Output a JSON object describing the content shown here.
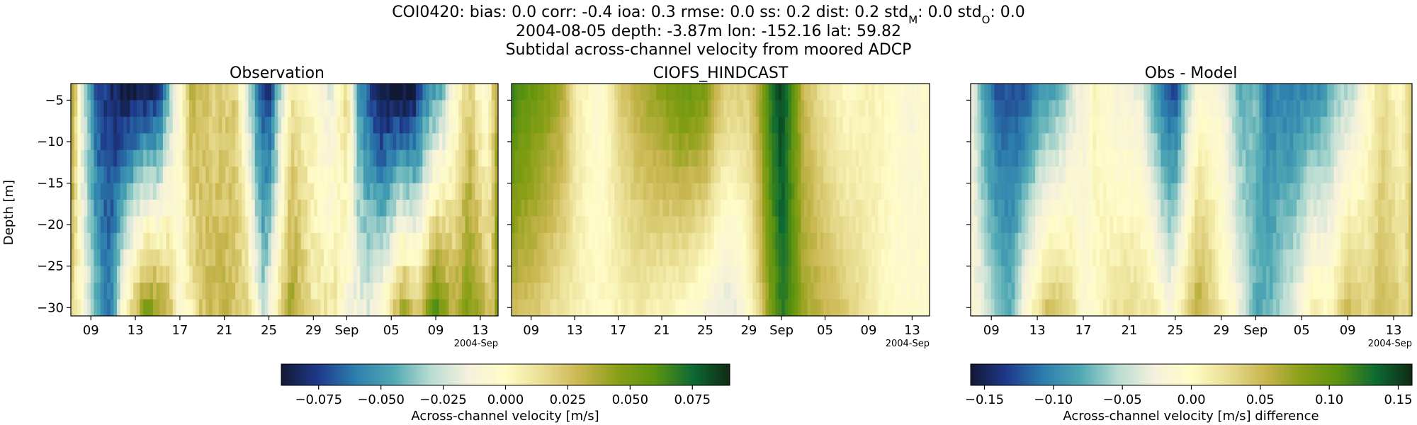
{
  "figure": {
    "title_line1_prefix": "COI0420: bias: 0.0  corr: -0.4  ioa: 0.3  rmse: 0.0  ss: 0.2  dist: 0.2  std",
    "title_line1_sub_m": "M",
    "title_line1_mid": ": 0.0  std",
    "title_line1_sub_o": "O",
    "title_line1_end": ": 0.0",
    "title_line2": "2004-08-05 depth: -3.87m lon: -152.16 lat: 59.82",
    "title_line3": "Subtidal across-channel velocity from moored ADCP"
  },
  "chart_data": [
    {
      "type": "heatmap",
      "title": "Observation",
      "ylabel": "Depth [m]",
      "xlabel": "",
      "x_ticks": [
        "09",
        "13",
        "17",
        "21",
        "25",
        "29",
        "Sep",
        "05",
        "09",
        "13"
      ],
      "x_offset_label": "2004-Sep",
      "y_ticks": [
        -5,
        -10,
        -15,
        -20,
        -25,
        -30
      ],
      "ylim": [
        -31,
        -3
      ],
      "colorbar": {
        "label": "Across-channel velocity [m/s]",
        "range": [
          -0.09,
          0.09
        ],
        "ticks": [
          "−0.075",
          "−0.050",
          "−0.025",
          "0.000",
          "0.025",
          "0.050",
          "0.075"
        ]
      }
    },
    {
      "type": "heatmap",
      "title": "CIOFS_HINDCAST",
      "x_ticks": [
        "09",
        "13",
        "17",
        "21",
        "25",
        "29",
        "Sep",
        "05",
        "09",
        "13"
      ],
      "x_offset_label": "2004-Sep",
      "ylim": [
        -31,
        -3
      ]
    },
    {
      "type": "heatmap",
      "title": "Obs - Model",
      "x_ticks": [
        "09",
        "13",
        "17",
        "21",
        "25",
        "29",
        "Sep",
        "05",
        "09",
        "13"
      ],
      "x_offset_label": "2004-Sep",
      "ylim": [
        -31,
        -3
      ],
      "colorbar": {
        "label": "Across-channel velocity [m/s] difference",
        "range": [
          -0.16,
          0.16
        ],
        "ticks": [
          "−0.15",
          "−0.10",
          "−0.05",
          "0.00",
          "0.05",
          "0.10",
          "0.15"
        ]
      }
    }
  ],
  "colormap": [
    "#111834",
    "#1f3a8c",
    "#2d7fae",
    "#50a9b4",
    "#b8dcd2",
    "#f5f1dc",
    "#fffcc8",
    "#e9dd92",
    "#c9b64f",
    "#8a9f16",
    "#5c930f",
    "#0d6b32",
    "#102a14"
  ]
}
